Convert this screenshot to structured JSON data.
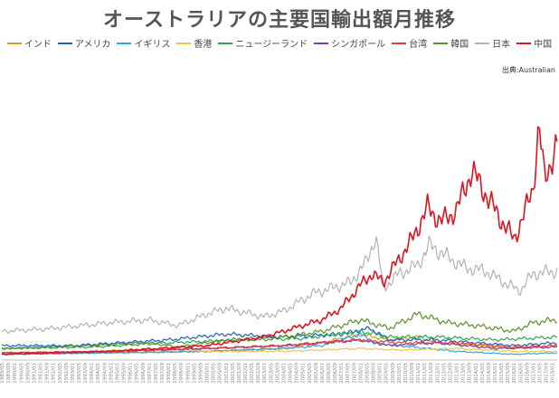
{
  "chart_data": {
    "type": "line",
    "title": "オーストラリアの主要国輸出額月推移",
    "source": "出典:Australian",
    "xlabel": "",
    "ylabel": "",
    "grid": false,
    "legend_position": "top",
    "x_tick_labels": [
      "1989/05",
      "1989/09",
      "1990/01",
      "1990/05",
      "1990/09",
      "1991/01",
      "1991/05",
      "1991/09",
      "1992/01",
      "1992/05",
      "1992/09",
      "1993/01",
      "1993/05",
      "1993/09",
      "1994/01",
      "1994/05",
      "1994/09",
      "1995/01",
      "1995/05",
      "1995/09",
      "1996/01",
      "1996/05",
      "1996/09",
      "1997/01",
      "1997/05",
      "1997/09",
      "1998/01",
      "1998/05",
      "1998/09",
      "1999/01",
      "1999/05",
      "1999/09",
      "2000/01",
      "2000/05",
      "2000/09",
      "2001/01",
      "2001/05",
      "2001/09",
      "2002/01",
      "2002/05",
      "2002/09",
      "2003/01",
      "2003/05",
      "2003/09",
      "2004/01",
      "2004/05",
      "2004/09",
      "2005/01",
      "2005/05",
      "2005/09",
      "2006/01",
      "2006/05",
      "2006/09",
      "2007/01",
      "2007/05",
      "2007/09",
      "2008/01",
      "2008/05",
      "2008/09",
      "2009/01",
      "2009/05",
      "2009/09",
      "2010/01",
      "2010/05",
      "2010/09",
      "2011/01",
      "2011/05",
      "2011/09",
      "2012/01",
      "2012/05",
      "2012/09",
      "2013/01",
      "2013/05",
      "2013/09",
      "2014/01",
      "2014/05",
      "2014/09",
      "2015/01",
      "2015/05",
      "2015/09",
      "2016/01",
      "2016/05",
      "2016/09",
      "2017/01",
      "2017/05",
      "2017/09",
      "2018/01"
    ],
    "x_range": [
      1989.33,
      2018.25
    ],
    "y_range": [
      0,
      100
    ],
    "series": [
      {
        "name": "インド",
        "color": "#c9a227",
        "keypoints": [
          [
            1989.4,
            2
          ],
          [
            1995,
            2.5
          ],
          [
            2000,
            3
          ],
          [
            2004,
            4
          ],
          [
            2006,
            6
          ],
          [
            2008,
            9
          ],
          [
            2009.5,
            7
          ],
          [
            2011,
            8
          ],
          [
            2012,
            6
          ],
          [
            2014,
            5
          ],
          [
            2016,
            4
          ],
          [
            2018.2,
            5
          ]
        ]
      },
      {
        "name": "アメリカ",
        "color": "#1f5fbf",
        "keypoints": [
          [
            1989.4,
            5
          ],
          [
            1993,
            5
          ],
          [
            1998,
            7
          ],
          [
            2001,
            9
          ],
          [
            2004,
            8
          ],
          [
            2007,
            9
          ],
          [
            2008.5,
            11
          ],
          [
            2009.5,
            7
          ],
          [
            2012,
            7
          ],
          [
            2014,
            6
          ],
          [
            2016,
            5
          ],
          [
            2018.2,
            6
          ]
        ]
      },
      {
        "name": "イギリス",
        "color": "#29a8e0",
        "keypoints": [
          [
            1989.4,
            2
          ],
          [
            1995,
            2.5
          ],
          [
            2000,
            3
          ],
          [
            2004,
            4
          ],
          [
            2006,
            5
          ],
          [
            2008,
            9
          ],
          [
            2008.7,
            6
          ],
          [
            2010,
            5
          ],
          [
            2013,
            3
          ],
          [
            2016,
            2
          ],
          [
            2018.2,
            2.5
          ]
        ]
      },
      {
        "name": "香港",
        "color": "#f5c24a",
        "keypoints": [
          [
            1989.4,
            2
          ],
          [
            1994,
            3
          ],
          [
            1997,
            4
          ],
          [
            2000,
            3
          ],
          [
            2004,
            3
          ],
          [
            2008,
            4
          ],
          [
            2010,
            3.5
          ],
          [
            2013,
            4
          ],
          [
            2016,
            3
          ],
          [
            2018.2,
            3
          ]
        ]
      },
      {
        "name": "ニュージーランド",
        "color": "#2ea84a",
        "keypoints": [
          [
            1989.4,
            4
          ],
          [
            1994,
            4.5
          ],
          [
            1998,
            6
          ],
          [
            2002,
            7
          ],
          [
            2005,
            7.5
          ],
          [
            2008,
            10
          ],
          [
            2009.5,
            8
          ],
          [
            2012,
            8
          ],
          [
            2015,
            7
          ],
          [
            2018.2,
            8
          ]
        ]
      },
      {
        "name": "シンガポール",
        "color": "#7b3fa8",
        "keypoints": [
          [
            1989.4,
            2.5
          ],
          [
            1995,
            3
          ],
          [
            2000,
            4
          ],
          [
            2004,
            5
          ],
          [
            2008,
            7
          ],
          [
            2009.5,
            5
          ],
          [
            2012,
            6
          ],
          [
            2015,
            4
          ],
          [
            2018.2,
            4.5
          ]
        ]
      },
      {
        "name": "台湾",
        "color": "#e23a3a",
        "keypoints": [
          [
            1989.4,
            2.5
          ],
          [
            1995,
            3
          ],
          [
            2000,
            4
          ],
          [
            2004,
            5
          ],
          [
            2008,
            7
          ],
          [
            2010,
            6
          ],
          [
            2013,
            6
          ],
          [
            2016,
            4.5
          ],
          [
            2018.2,
            5
          ]
        ]
      },
      {
        "name": "韓国",
        "color": "#5e8f2a",
        "keypoints": [
          [
            1989.4,
            4
          ],
          [
            1994,
            5
          ],
          [
            1997,
            6
          ],
          [
            1998.5,
            4.5
          ],
          [
            2001,
            7
          ],
          [
            2004,
            8
          ],
          [
            2006,
            10
          ],
          [
            2008,
            14
          ],
          [
            2009.5,
            11
          ],
          [
            2011,
            16
          ],
          [
            2012.5,
            13
          ],
          [
            2014,
            12
          ],
          [
            2016,
            10
          ],
          [
            2017,
            13
          ],
          [
            2018.2,
            14
          ]
        ]
      },
      {
        "name": "日本",
        "color": "#b3b3b3",
        "keypoints": [
          [
            1989.4,
            10
          ],
          [
            1992,
            11
          ],
          [
            1995,
            13
          ],
          [
            1997,
            14
          ],
          [
            1998.5,
            12
          ],
          [
            2000,
            16
          ],
          [
            2001,
            18
          ],
          [
            2003,
            15
          ],
          [
            2004,
            17
          ],
          [
            2005.5,
            23
          ],
          [
            2006.5,
            25
          ],
          [
            2007.5,
            27
          ],
          [
            2008.3,
            34
          ],
          [
            2008.8,
            43
          ],
          [
            2009.2,
            25
          ],
          [
            2010,
            30
          ],
          [
            2011,
            33
          ],
          [
            2011.6,
            40
          ],
          [
            2012.5,
            36
          ],
          [
            2013.5,
            32
          ],
          [
            2014.5,
            31
          ],
          [
            2015.5,
            27
          ],
          [
            2016.3,
            24
          ],
          [
            2017,
            30
          ],
          [
            2018.2,
            31
          ]
        ]
      },
      {
        "name": "中国",
        "color": "#e0141e",
        "keypoints": [
          [
            1989.4,
            2
          ],
          [
            1995,
            3
          ],
          [
            2000,
            5
          ],
          [
            2003,
            8
          ],
          [
            2004,
            10
          ],
          [
            2005,
            12
          ],
          [
            2006,
            14
          ],
          [
            2007,
            18
          ],
          [
            2008,
            26
          ],
          [
            2008.6,
            30
          ],
          [
            2009.2,
            27
          ],
          [
            2010,
            35
          ],
          [
            2010.7,
            42
          ],
          [
            2011.5,
            53
          ],
          [
            2012.2,
            48
          ],
          [
            2013,
            52
          ],
          [
            2013.8,
            66
          ],
          [
            2014.5,
            58
          ],
          [
            2015.2,
            50
          ],
          [
            2016,
            42
          ],
          [
            2016.6,
            52
          ],
          [
            2017,
            60
          ],
          [
            2017.3,
            82
          ],
          [
            2017.6,
            62
          ],
          [
            2018.2,
            75
          ]
        ]
      }
    ]
  }
}
